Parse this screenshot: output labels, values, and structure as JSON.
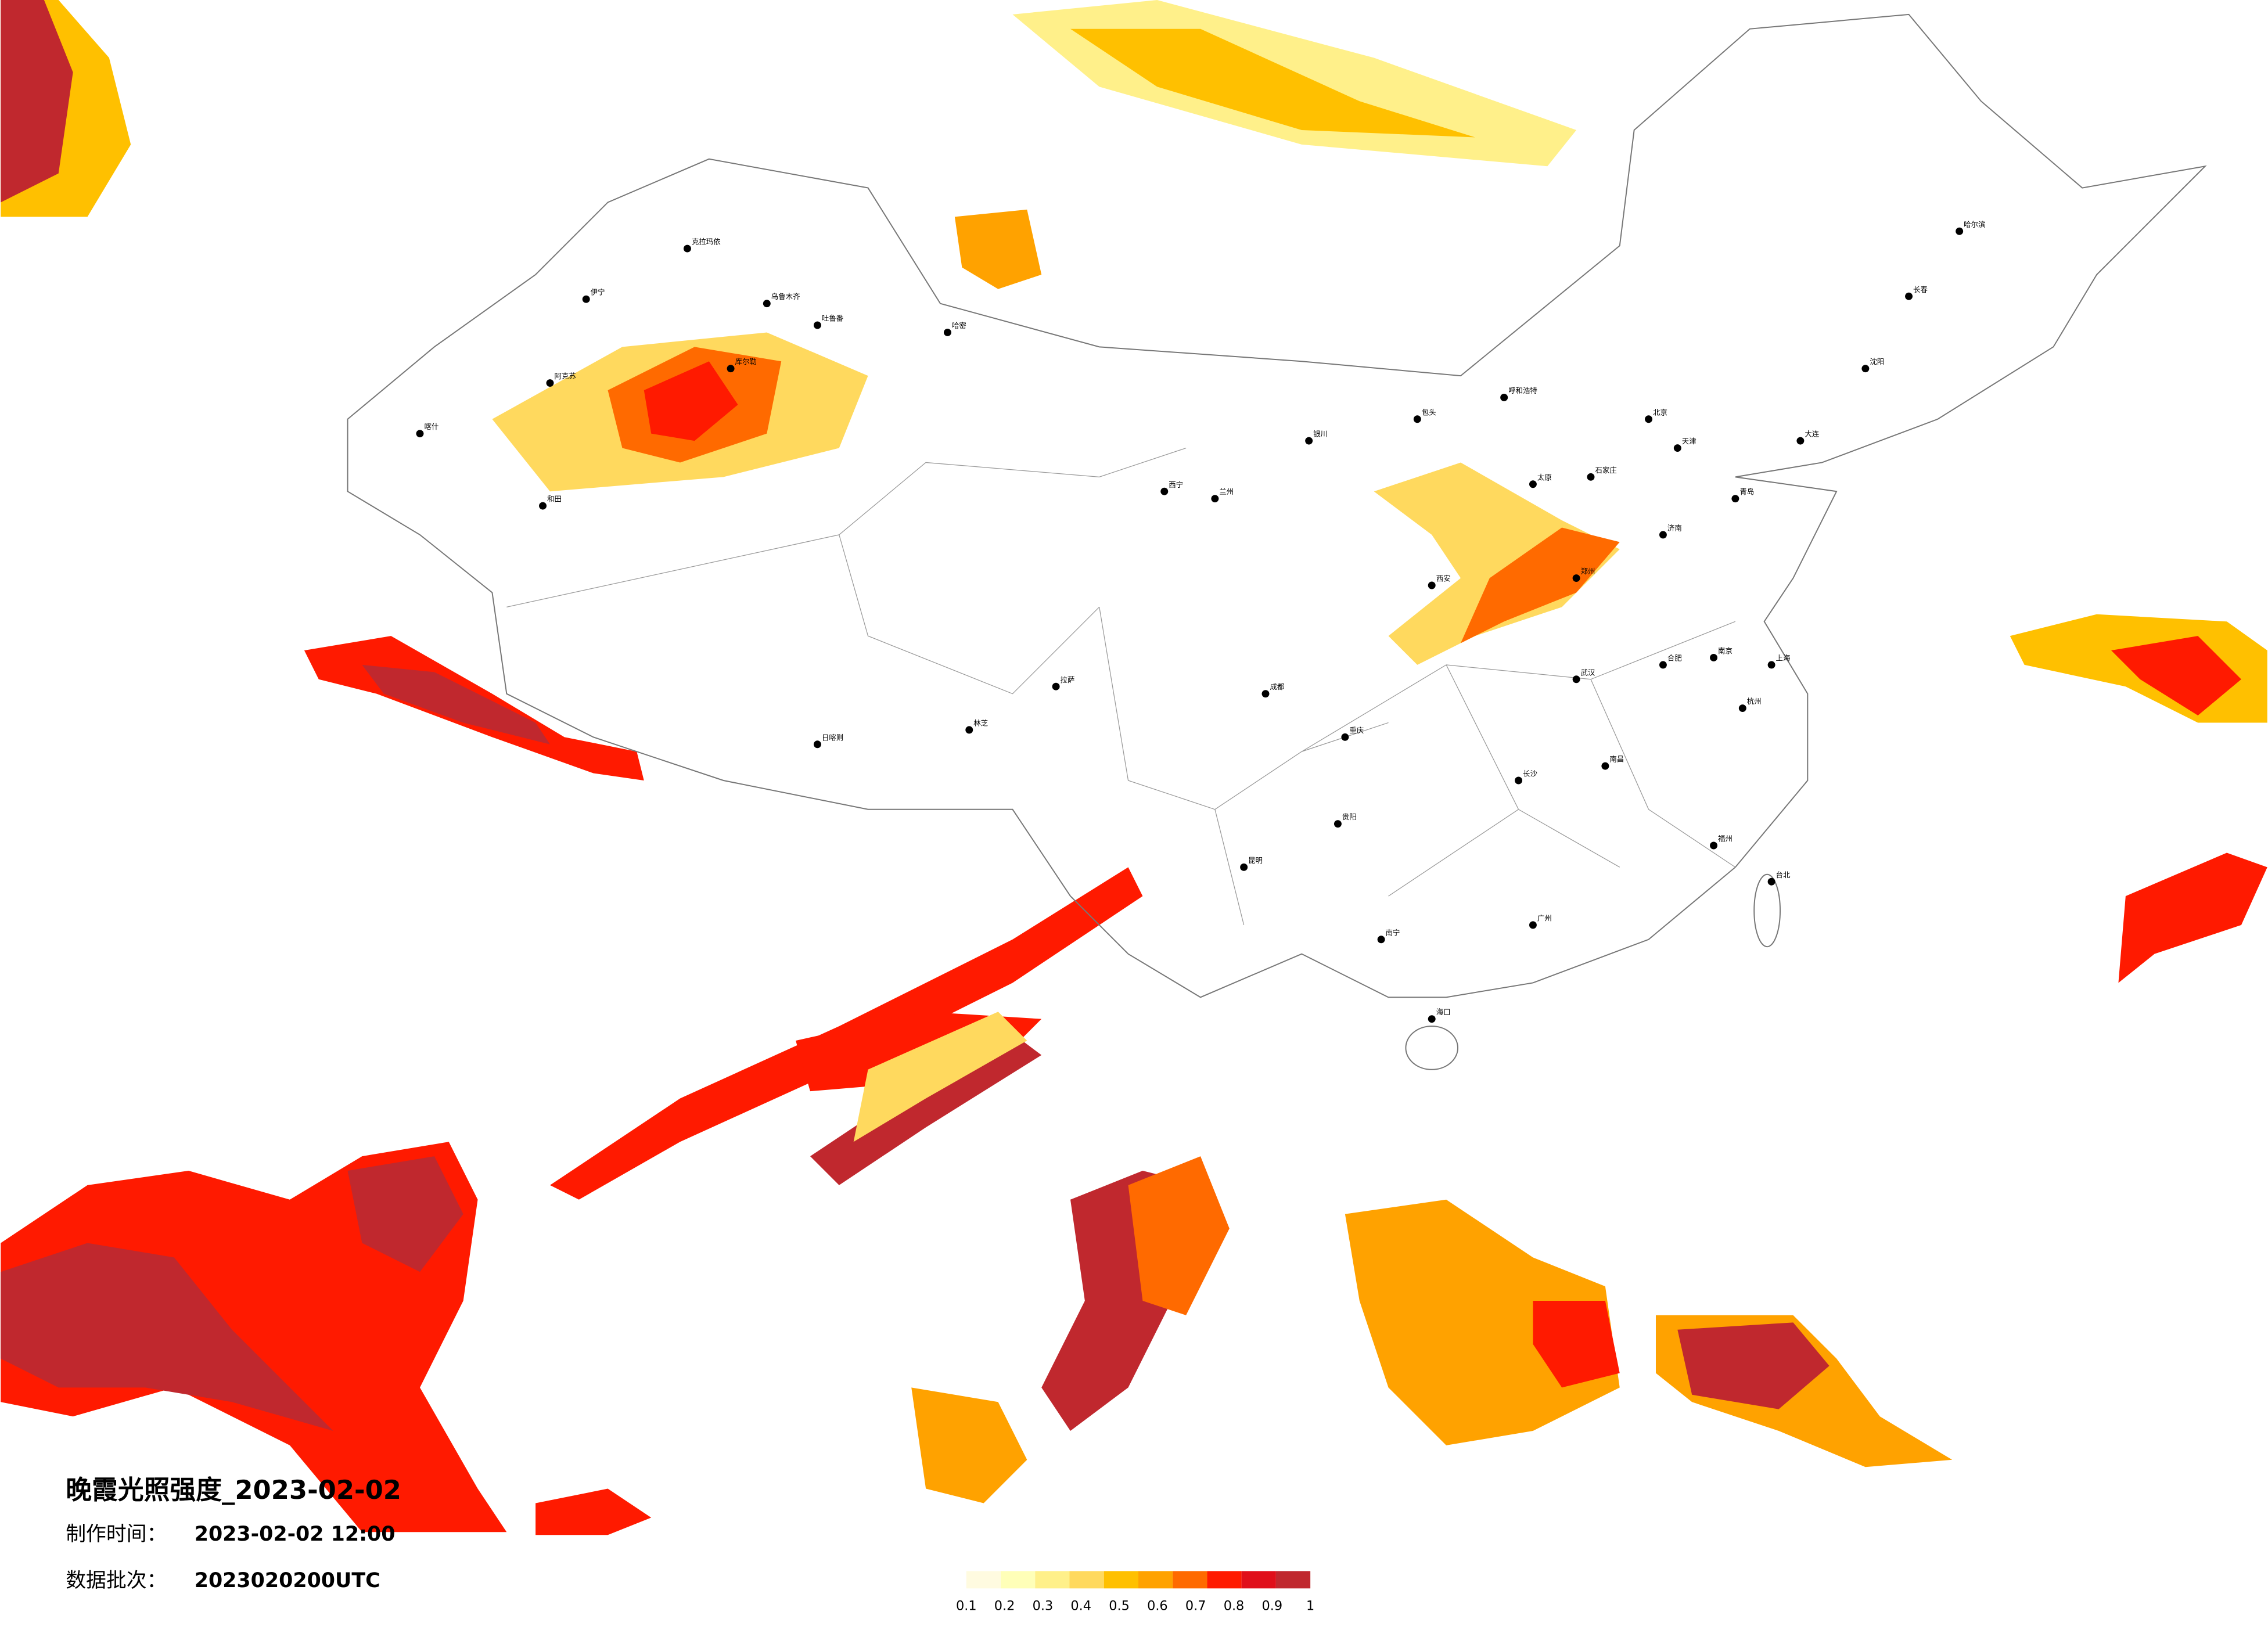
{
  "title": "晚霞光照强度_2023-02-02",
  "made_label": "制作时间：",
  "made_time": "2023-02-02 12:00",
  "batch_label": "数据批次：",
  "batch": "2023020200UTC",
  "legend": {
    "colors": [
      "#fffbe0",
      "#ffffb8",
      "#fff08a",
      "#ffd95e",
      "#ffc000",
      "#ffa200",
      "#ff6a00",
      "#ff1a00",
      "#e00f1a",
      "#c0282e"
    ],
    "ticks": [
      0.1,
      0.2,
      0.3,
      0.4,
      0.5,
      0.6,
      0.7,
      0.8,
      0.9,
      1
    ]
  },
  "cities": [
    "乌鲁木齐",
    "克拉玛依",
    "伊宁",
    "阿克苏",
    "喀什",
    "和田",
    "哈密",
    "吐鲁番",
    "库尔勒",
    "拉萨",
    "日喀则",
    "林芝",
    "西宁",
    "兰州",
    "银川",
    "呼和浩特",
    "包头",
    "北京",
    "天津",
    "石家庄",
    "太原",
    "济南",
    "郑州",
    "西安",
    "成都",
    "重庆",
    "贵阳",
    "昆明",
    "南宁",
    "广州",
    "长沙",
    "武汉",
    "南昌",
    "合肥",
    "南京",
    "上海",
    "杭州",
    "福州",
    "台北",
    "海口",
    "哈尔滨",
    "长春",
    "沈阳",
    "大连",
    "青岛"
  ]
}
